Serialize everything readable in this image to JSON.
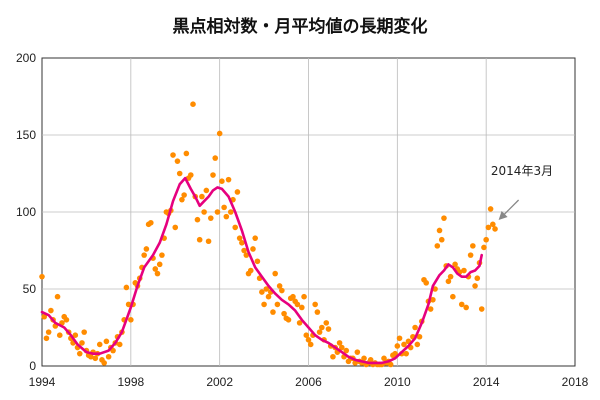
{
  "chart_data": {
    "type": "line",
    "title": "黒点相対数・月平均値の長期変化",
    "xlabel": "",
    "ylabel": "",
    "xlim": [
      1994,
      2018
    ],
    "ylim": [
      0,
      200
    ],
    "x_ticks": [
      "1994",
      "1998",
      "2002",
      "2006",
      "2010",
      "2014",
      "2018"
    ],
    "y_ticks": [
      "0",
      "50",
      "100",
      "150",
      "200"
    ],
    "grid": true,
    "legend": "none",
    "annotation": {
      "text": "2014年3月",
      "x": 2014.2,
      "y": 92.2
    },
    "colors": {
      "monthly": "#ff8c00",
      "smoothed": "#e6007e",
      "annotation_arrow": "#888888",
      "grid": "#bbbbbb"
    },
    "series": [
      {
        "style": "scatter",
        "points": [
          [
            1994.0,
            58
          ],
          [
            1994.1,
            32
          ],
          [
            1994.2,
            18
          ],
          [
            1994.3,
            22
          ],
          [
            1994.4,
            36
          ],
          [
            1994.5,
            30
          ],
          [
            1994.6,
            26
          ],
          [
            1994.7,
            45
          ],
          [
            1994.8,
            20
          ],
          [
            1994.9,
            28
          ],
          [
            1995.0,
            32
          ],
          [
            1995.1,
            30
          ],
          [
            1995.2,
            22
          ],
          [
            1995.3,
            18
          ],
          [
            1995.4,
            15
          ],
          [
            1995.5,
            20
          ],
          [
            1995.6,
            12
          ],
          [
            1995.7,
            8
          ],
          [
            1995.8,
            15
          ],
          [
            1995.9,
            22
          ],
          [
            1996.0,
            10
          ],
          [
            1996.1,
            7
          ],
          [
            1996.2,
            6
          ],
          [
            1996.3,
            9
          ],
          [
            1996.4,
            5
          ],
          [
            1996.5,
            8
          ],
          [
            1996.6,
            14
          ],
          [
            1996.7,
            4
          ],
          [
            1996.8,
            2
          ],
          [
            1996.9,
            16
          ],
          [
            1997.0,
            6
          ],
          [
            1997.1,
            12
          ],
          [
            1997.2,
            10
          ],
          [
            1997.3,
            15
          ],
          [
            1997.4,
            19
          ],
          [
            1997.5,
            14
          ],
          [
            1997.6,
            22
          ],
          [
            1997.7,
            30
          ],
          [
            1997.8,
            51
          ],
          [
            1997.9,
            40
          ],
          [
            1998.0,
            30
          ],
          [
            1998.1,
            40
          ],
          [
            1998.2,
            54
          ],
          [
            1998.3,
            52
          ],
          [
            1998.4,
            57
          ],
          [
            1998.5,
            64
          ],
          [
            1998.6,
            72
          ],
          [
            1998.7,
            76
          ],
          [
            1998.8,
            92
          ],
          [
            1998.9,
            93
          ],
          [
            1999.0,
            70
          ],
          [
            1999.1,
            63
          ],
          [
            1999.2,
            60
          ],
          [
            1999.3,
            66
          ],
          [
            1999.4,
            72
          ],
          [
            1999.5,
            83
          ],
          [
            1999.6,
            100
          ],
          [
            1999.7,
            99
          ],
          [
            1999.8,
            101
          ],
          [
            1999.9,
            137
          ],
          [
            2000.0,
            90
          ],
          [
            2000.1,
            133
          ],
          [
            2000.2,
            125
          ],
          [
            2000.3,
            108
          ],
          [
            2000.4,
            111
          ],
          [
            2000.5,
            138
          ],
          [
            2000.6,
            122
          ],
          [
            2000.7,
            124
          ],
          [
            2000.8,
            170
          ],
          [
            2000.9,
            110
          ],
          [
            2001.0,
            95
          ],
          [
            2001.1,
            82
          ],
          [
            2001.2,
            110
          ],
          [
            2001.3,
            100
          ],
          [
            2001.4,
            114
          ],
          [
            2001.5,
            81
          ],
          [
            2001.6,
            96
          ],
          [
            2001.7,
            124
          ],
          [
            2001.8,
            135
          ],
          [
            2001.9,
            100
          ],
          [
            2002.0,
            151
          ],
          [
            2002.1,
            120
          ],
          [
            2002.2,
            103
          ],
          [
            2002.3,
            97
          ],
          [
            2002.4,
            121
          ],
          [
            2002.5,
            100
          ],
          [
            2002.6,
            108
          ],
          [
            2002.7,
            90
          ],
          [
            2002.8,
            113
          ],
          [
            2002.9,
            83
          ],
          [
            2003.0,
            80
          ],
          [
            2003.1,
            75
          ],
          [
            2003.2,
            72
          ],
          [
            2003.3,
            60
          ],
          [
            2003.4,
            62
          ],
          [
            2003.5,
            76
          ],
          [
            2003.6,
            83
          ],
          [
            2003.7,
            68
          ],
          [
            2003.8,
            57
          ],
          [
            2003.9,
            48
          ],
          [
            2004.0,
            40
          ],
          [
            2004.1,
            50
          ],
          [
            2004.2,
            45
          ],
          [
            2004.3,
            48
          ],
          [
            2004.4,
            35
          ],
          [
            2004.5,
            60
          ],
          [
            2004.6,
            40
          ],
          [
            2004.7,
            52
          ],
          [
            2004.8,
            49
          ],
          [
            2004.9,
            34
          ],
          [
            2005.0,
            31
          ],
          [
            2005.1,
            30
          ],
          [
            2005.2,
            44
          ],
          [
            2005.3,
            45
          ],
          [
            2005.4,
            42
          ],
          [
            2005.5,
            40
          ],
          [
            2005.6,
            28
          ],
          [
            2005.7,
            38
          ],
          [
            2005.8,
            45
          ],
          [
            2005.9,
            20
          ],
          [
            2006.0,
            17
          ],
          [
            2006.1,
            14
          ],
          [
            2006.2,
            20
          ],
          [
            2006.3,
            40
          ],
          [
            2006.4,
            35
          ],
          [
            2006.5,
            22
          ],
          [
            2006.6,
            25
          ],
          [
            2006.7,
            17
          ],
          [
            2006.8,
            28
          ],
          [
            2006.9,
            24
          ],
          [
            2007.0,
            13
          ],
          [
            2007.1,
            6
          ],
          [
            2007.2,
            12
          ],
          [
            2007.3,
            9
          ],
          [
            2007.4,
            15
          ],
          [
            2007.5,
            12
          ],
          [
            2007.6,
            6
          ],
          [
            2007.7,
            10
          ],
          [
            2007.8,
            3
          ],
          [
            2007.9,
            5
          ],
          [
            2008.0,
            5
          ],
          [
            2008.1,
            2
          ],
          [
            2008.2,
            9
          ],
          [
            2008.3,
            3
          ],
          [
            2008.4,
            2
          ],
          [
            2008.5,
            5
          ],
          [
            2008.6,
            1
          ],
          [
            2008.7,
            2
          ],
          [
            2008.8,
            4
          ],
          [
            2008.9,
            1
          ],
          [
            2009.0,
            2
          ],
          [
            2009.1,
            1
          ],
          [
            2009.2,
            1
          ],
          [
            2009.3,
            1
          ],
          [
            2009.4,
            5
          ],
          [
            2009.5,
            2
          ],
          [
            2009.6,
            3
          ],
          [
            2009.7,
            1
          ],
          [
            2009.8,
            7
          ],
          [
            2009.9,
            8
          ],
          [
            2010.0,
            13
          ],
          [
            2010.1,
            18
          ],
          [
            2010.2,
            8
          ],
          [
            2010.3,
            14
          ],
          [
            2010.4,
            8
          ],
          [
            2010.5,
            16
          ],
          [
            2010.6,
            12
          ],
          [
            2010.7,
            19
          ],
          [
            2010.8,
            25
          ],
          [
            2010.9,
            14
          ],
          [
            2011.0,
            19
          ],
          [
            2011.1,
            29
          ],
          [
            2011.2,
            56
          ],
          [
            2011.3,
            54
          ],
          [
            2011.4,
            42
          ],
          [
            2011.5,
            37
          ],
          [
            2011.6,
            43
          ],
          [
            2011.7,
            50
          ],
          [
            2011.8,
            78
          ],
          [
            2011.9,
            88
          ],
          [
            2012.0,
            82
          ],
          [
            2012.1,
            96
          ],
          [
            2012.2,
            65
          ],
          [
            2012.3,
            55
          ],
          [
            2012.4,
            58
          ],
          [
            2012.5,
            45
          ],
          [
            2012.6,
            66
          ],
          [
            2012.7,
            63
          ],
          [
            2012.8,
            61
          ],
          [
            2012.9,
            40
          ],
          [
            2013.0,
            62
          ],
          [
            2013.1,
            38
          ],
          [
            2013.2,
            58
          ],
          [
            2013.3,
            72
          ],
          [
            2013.4,
            78
          ],
          [
            2013.5,
            52
          ],
          [
            2013.6,
            57
          ],
          [
            2013.7,
            67
          ],
          [
            2013.8,
            37
          ],
          [
            2013.9,
            77
          ],
          [
            2014.0,
            82
          ],
          [
            2014.1,
            90
          ],
          [
            2014.2,
            102
          ],
          [
            2014.3,
            92
          ],
          [
            2014.4,
            89
          ]
        ]
      },
      {
        "style": "line",
        "points": [
          [
            1994.0,
            35
          ],
          [
            1994.3,
            33
          ],
          [
            1994.6,
            28
          ],
          [
            1995.0,
            25
          ],
          [
            1995.3,
            20
          ],
          [
            1995.6,
            14
          ],
          [
            1996.0,
            9
          ],
          [
            1996.3,
            8
          ],
          [
            1996.6,
            8
          ],
          [
            1997.0,
            10
          ],
          [
            1997.3,
            15
          ],
          [
            1997.6,
            22
          ],
          [
            1998.0,
            38
          ],
          [
            1998.3,
            52
          ],
          [
            1998.6,
            64
          ],
          [
            1999.0,
            72
          ],
          [
            1999.3,
            80
          ],
          [
            1999.6,
            92
          ],
          [
            1999.9,
            107
          ],
          [
            2000.2,
            118
          ],
          [
            2000.45,
            122
          ],
          [
            2000.7,
            115
          ],
          [
            2000.9,
            110
          ],
          [
            2001.1,
            104
          ],
          [
            2001.3,
            107
          ],
          [
            2001.5,
            110
          ],
          [
            2001.7,
            114
          ],
          [
            2001.9,
            116
          ],
          [
            2002.1,
            115
          ],
          [
            2002.4,
            110
          ],
          [
            2002.7,
            100
          ],
          [
            2003.0,
            88
          ],
          [
            2003.3,
            74
          ],
          [
            2003.6,
            64
          ],
          [
            2003.9,
            58
          ],
          [
            2004.2,
            52
          ],
          [
            2004.5,
            47
          ],
          [
            2004.8,
            43
          ],
          [
            2005.1,
            40
          ],
          [
            2005.4,
            36
          ],
          [
            2005.7,
            30
          ],
          [
            2006.0,
            25
          ],
          [
            2006.3,
            20
          ],
          [
            2006.6,
            17
          ],
          [
            2006.9,
            15
          ],
          [
            2007.2,
            12
          ],
          [
            2007.5,
            9
          ],
          [
            2007.8,
            6
          ],
          [
            2008.1,
            4
          ],
          [
            2008.4,
            3
          ],
          [
            2008.7,
            2
          ],
          [
            2009.0,
            2
          ],
          [
            2009.3,
            2
          ],
          [
            2009.6,
            3
          ],
          [
            2009.9,
            5
          ],
          [
            2010.2,
            9
          ],
          [
            2010.5,
            13
          ],
          [
            2010.8,
            18
          ],
          [
            2011.1,
            28
          ],
          [
            2011.4,
            40
          ],
          [
            2011.6,
            52
          ],
          [
            2011.9,
            59
          ],
          [
            2012.1,
            62
          ],
          [
            2012.3,
            66
          ],
          [
            2012.5,
            64
          ],
          [
            2012.7,
            60
          ],
          [
            2012.9,
            58
          ],
          [
            2013.1,
            58
          ],
          [
            2013.3,
            61
          ],
          [
            2013.5,
            62
          ],
          [
            2013.7,
            65
          ],
          [
            2013.8,
            72
          ]
        ]
      }
    ]
  }
}
